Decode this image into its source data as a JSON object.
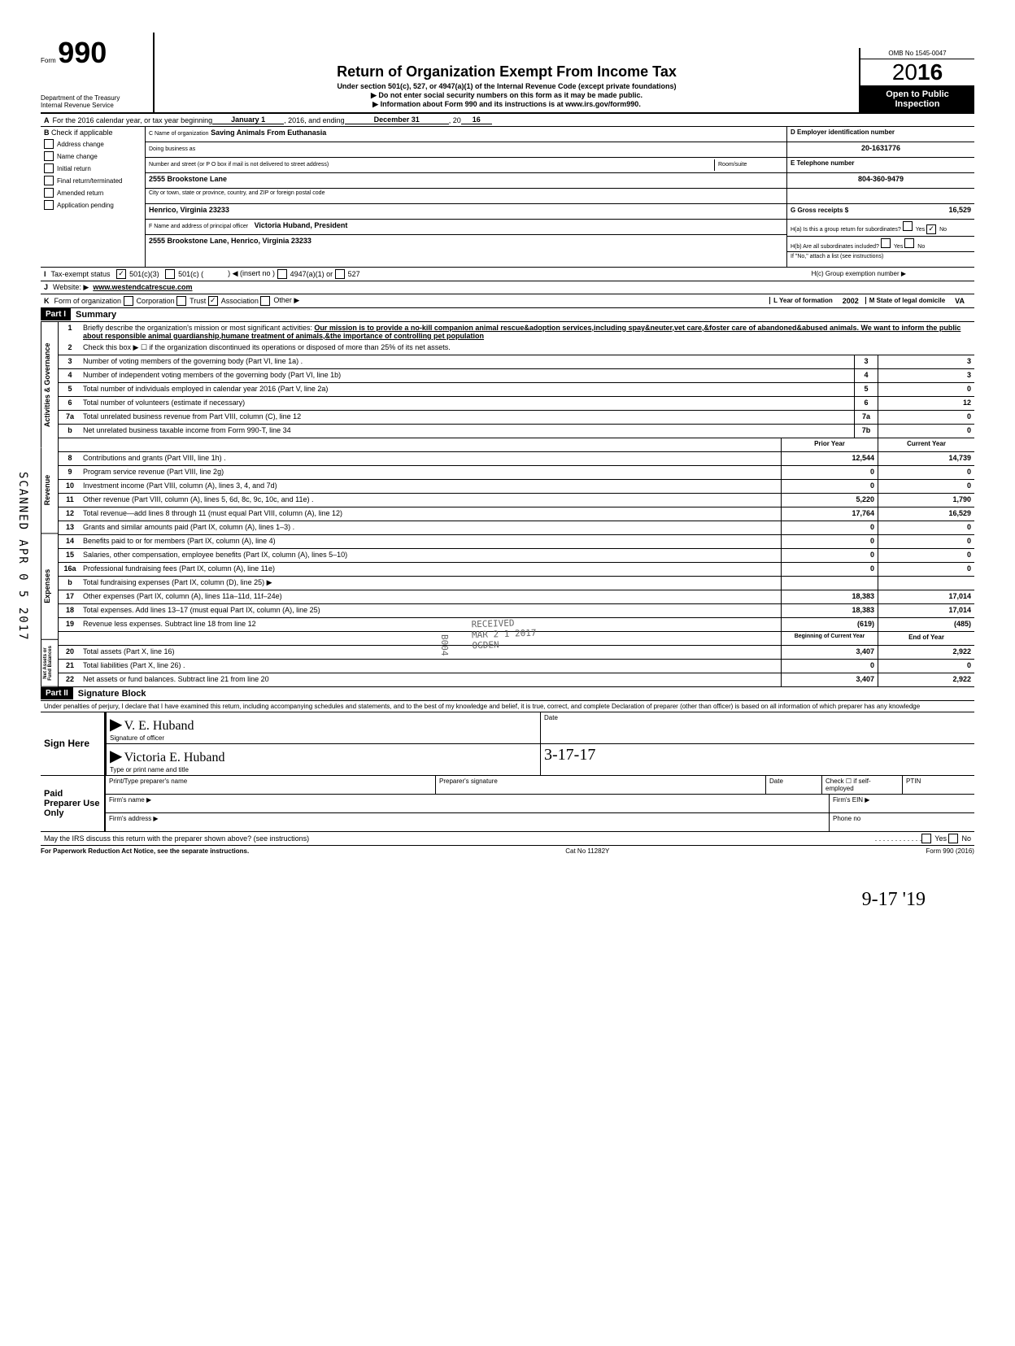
{
  "header": {
    "form_label": "Form",
    "form_number": "990",
    "dept": "Department of the Treasury",
    "irs": "Internal Revenue Service",
    "title": "Return of Organization Exempt From Income Tax",
    "subtitle": "Under section 501(c), 527, or 4947(a)(1) of the Internal Revenue Code (except private foundations)",
    "note1": "▶ Do not enter social security numbers on this form as it may be made public.",
    "note2": "▶ Information about Form 990 and its instructions is at www.irs.gov/form990.",
    "omb": "OMB No 1545-0047",
    "year_prefix": "2",
    "year_zero": "0",
    "year_bold": "16",
    "open1": "Open to Public",
    "open2": "Inspection"
  },
  "rowA": {
    "label": "A",
    "text1": "For the 2016 calendar year, or tax year beginning",
    "begin": "January 1",
    "text2": ", 2016, and ending",
    "end": "December 31",
    "text3": ", 20",
    "yr": "16"
  },
  "colB": {
    "label": "B",
    "hdr": "Check if applicable",
    "items": [
      "Address change",
      "Name change",
      "Initial return",
      "Final return/terminated",
      "Amended return",
      "Application pending"
    ]
  },
  "colC": {
    "name_lbl": "C Name of organization",
    "name": "Saving Animals From Euthanasia",
    "dba_lbl": "Doing business as",
    "dba": "",
    "street_lbl": "Number and street (or P O  box if mail is not delivered to street address)",
    "room_lbl": "Room/suite",
    "street": "2555 Brookstone Lane",
    "city_lbl": "City or town, state or province, country, and ZIP or foreign postal code",
    "city": "Henrico, Virginia  23233",
    "officer_lbl": "F Name and address of principal officer",
    "officer": "Victoria Huband, President",
    "officer_addr": "2555 Brookstone Lane, Henrico, Virginia  23233"
  },
  "colD": {
    "ein_lbl": "D Employer identification number",
    "ein": "20-1631776",
    "tel_lbl": "E Telephone number",
    "tel": "804-360-9479",
    "gross_lbl": "G Gross receipts $",
    "gross": "16,529",
    "ha_lbl": "H(a) Is this a group return for subordinates?",
    "ha_yes": "Yes",
    "ha_no": "No",
    "hb_lbl": "H(b) Are all subordinates included?",
    "hb_yes": "Yes",
    "hb_no": "No",
    "hb_note": "If \"No,\" attach a list  (see instructions)",
    "hc_lbl": "H(c) Group exemption number ▶"
  },
  "rowI": {
    "label": "I",
    "text": "Tax-exempt status",
    "opt1": "501(c)(3)",
    "opt2": "501(c) (",
    "opt2b": ") ◀ (insert no )",
    "opt3": "4947(a)(1) or",
    "opt4": "527"
  },
  "rowJ": {
    "label": "J",
    "text": "Website: ▶",
    "val": "www.westendcatrescue.com"
  },
  "rowK": {
    "label": "K",
    "text": "Form of organization",
    "opts": [
      "Corporation",
      "Trust",
      "Association",
      "Other ▶"
    ],
    "check_idx": 2,
    "year_lbl": "L Year of formation",
    "year_val": "2002",
    "state_lbl": "M State of legal domicile",
    "state_val": "VA"
  },
  "part1": {
    "hdr": "Part I",
    "title": "Summary",
    "side_gov": "Activities & Governance",
    "side_rev": "Revenue",
    "side_exp": "Expenses",
    "side_net": "Net Assets or\nFund Balances",
    "line1_lbl": "Briefly describe the organization's mission or most significant activities:",
    "mission": "Our mission is to provide a no-kill companion animal rescue&adoption services,including spay&neuter,vet care,&foster care of abandoned&abused animals.  We want to inform the public about responsible animal guardianship,humane treatment of animals,&the importance of controlling pet population",
    "line2": "Check this box ▶ ☐ if the organization discontinued its operations or disposed of more than 25% of its net assets.",
    "lines_gov": [
      {
        "n": "3",
        "t": "Number of voting members of the governing body (Part VI, line 1a) .",
        "box": "3",
        "v": "3"
      },
      {
        "n": "4",
        "t": "Number of independent voting members of the governing body (Part VI, line 1b)",
        "box": "4",
        "v": "3"
      },
      {
        "n": "5",
        "t": "Total number of individuals employed in calendar year 2016 (Part V, line 2a)",
        "box": "5",
        "v": "0"
      },
      {
        "n": "6",
        "t": "Total number of volunteers (estimate if necessary)",
        "box": "6",
        "v": "12"
      },
      {
        "n": "7a",
        "t": "Total unrelated business revenue from Part VIII, column (C), line 12",
        "box": "7a",
        "v": "0"
      },
      {
        "n": "b",
        "t": "Net unrelated business taxable income from Form 990-T, line 34",
        "box": "7b",
        "v": "0"
      }
    ],
    "col_prior": "Prior Year",
    "col_curr": "Current Year",
    "lines_rev": [
      {
        "n": "8",
        "t": "Contributions and grants (Part VIII, line 1h) .",
        "p": "12,544",
        "c": "14,739"
      },
      {
        "n": "9",
        "t": "Program service revenue (Part VIII, line 2g)",
        "p": "0",
        "c": "0"
      },
      {
        "n": "10",
        "t": "Investment income (Part VIII, column (A), lines 3, 4, and 7d)",
        "p": "0",
        "c": "0"
      },
      {
        "n": "11",
        "t": "Other revenue (Part VIII, column (A), lines 5, 6d, 8c, 9c, 10c, and 11e) .",
        "p": "5,220",
        "c": "1,790"
      },
      {
        "n": "12",
        "t": "Total revenue—add lines 8 through 11 (must equal Part VIII, column (A), line 12)",
        "p": "17,764",
        "c": "16,529"
      }
    ],
    "lines_exp": [
      {
        "n": "13",
        "t": "Grants and similar amounts paid (Part IX, column (A), lines 1–3) .",
        "p": "0",
        "c": "0"
      },
      {
        "n": "14",
        "t": "Benefits paid to or for members (Part IX, column (A), line 4)",
        "p": "0",
        "c": "0"
      },
      {
        "n": "15",
        "t": "Salaries, other compensation, employee benefits (Part IX, column (A), lines 5–10)",
        "p": "0",
        "c": "0"
      },
      {
        "n": "16a",
        "t": "Professional fundraising fees (Part IX, column (A), line 11e)",
        "p": "0",
        "c": "0"
      },
      {
        "n": "b",
        "t": "Total fundraising expenses (Part IX, column (D), line 25) ▶",
        "p": "",
        "c": ""
      },
      {
        "n": "17",
        "t": "Other expenses (Part IX, column (A), lines 11a–11d, 11f–24e)",
        "p": "18,383",
        "c": "17,014"
      },
      {
        "n": "18",
        "t": "Total expenses. Add lines 13–17 (must equal Part IX, column (A), line 25)",
        "p": "18,383",
        "c": "17,014"
      },
      {
        "n": "19",
        "t": "Revenue less expenses. Subtract line 18 from line 12",
        "p": "(619)",
        "c": "(485)"
      }
    ],
    "col_begin": "Beginning of Current Year",
    "col_end": "End of Year",
    "lines_net": [
      {
        "n": "20",
        "t": "Total assets (Part X, line 16)",
        "p": "3,407",
        "c": "2,922"
      },
      {
        "n": "21",
        "t": "Total liabilities (Part X, line 26) .",
        "p": "0",
        "c": "0"
      },
      {
        "n": "22",
        "t": "Net assets or fund balances. Subtract line 21 from line 20",
        "p": "3,407",
        "c": "2,922"
      }
    ]
  },
  "part2": {
    "hdr": "Part II",
    "title": "Signature Block",
    "decl": "Under penalties of perjury, I declare that I have examined this return, including accompanying schedules and statements, and to the best of my knowledge  and belief, it is true, correct, and complete  Declaration of preparer (other than officer) is based on all information of which preparer has any knowledge",
    "sign_lbl": "Sign Here",
    "sig1": "V. E. Huband",
    "sig1_lbl": "Signature of officer",
    "sig2": "Victoria E. Huband",
    "sig2_lbl": "Type or print name and title",
    "date_lbl": "Date",
    "date_val": "3-17-17",
    "paid_lbl": "Paid Preparer Use Only",
    "prep_name": "Print/Type preparer's name",
    "prep_sig": "Preparer's signature",
    "prep_date": "Date",
    "prep_check": "Check ☐ if self-employed",
    "ptin": "PTIN",
    "firm_name": "Firm's name    ▶",
    "firm_ein": "Firm's EIN  ▶",
    "firm_addr": "Firm's address ▶",
    "phone": "Phone no",
    "discuss": "May the IRS discuss this return with the preparer shown above? (see instructions)",
    "yes": "Yes",
    "no": "No"
  },
  "footer": {
    "left": "For Paperwork Reduction Act Notice, see the separate instructions.",
    "mid": "Cat  No  11282Y",
    "right": "Form 990 (2016)"
  },
  "stamps": {
    "scanned": "SCANNED APR 0 5 2017",
    "received": "RECEIVED",
    "recv_date": "MAR 2 1 2017",
    "b004": "B004",
    "ogden": "OGDEN",
    "bottom_hand": "9-17    '19"
  }
}
